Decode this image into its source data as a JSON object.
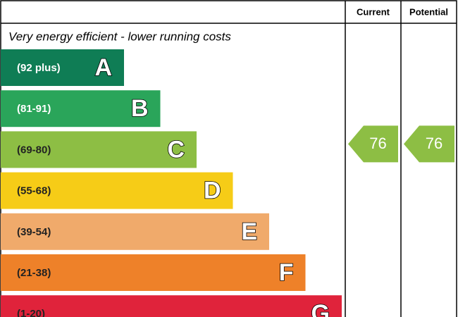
{
  "header": {
    "current": "Current",
    "potential": "Potential"
  },
  "top_note": "Very energy efficient - lower running costs",
  "bands": [
    {
      "range": "(92 plus)",
      "letter": "A",
      "color": "#0f7d55"
    },
    {
      "range": "(81-91)",
      "letter": "B",
      "color": "#2aa55a"
    },
    {
      "range": "(69-80)",
      "letter": "C",
      "color": "#8dbe44"
    },
    {
      "range": "(55-68)",
      "letter": "D",
      "color": "#f6cc17"
    },
    {
      "range": "(39-54)",
      "letter": "E",
      "color": "#f0aa6b"
    },
    {
      "range": "(21-38)",
      "letter": "F",
      "color": "#ee8129"
    },
    {
      "range": "(1-20)",
      "letter": "G",
      "color": "#e0233b"
    }
  ],
  "current": {
    "value": 76,
    "color": "#8dbe44"
  },
  "potential": {
    "value": 76,
    "color": "#8dbe44"
  }
}
